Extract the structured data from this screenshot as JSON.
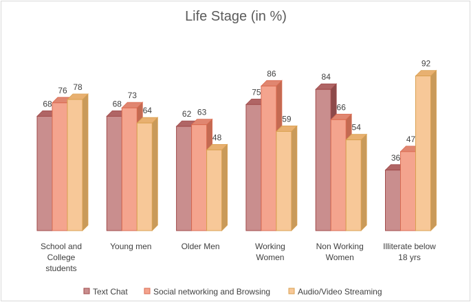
{
  "chart_data": {
    "type": "bar",
    "title": "Life Stage (in %)",
    "categories": [
      [
        "School and",
        "College",
        "students"
      ],
      [
        "Young men"
      ],
      [
        "Older Men"
      ],
      [
        "Working",
        "Women"
      ],
      [
        "Non Working",
        "Women"
      ],
      [
        "Illiterate below",
        "18 yrs"
      ]
    ],
    "series": [
      {
        "name": "Text Chat",
        "values": [
          68,
          68,
          62,
          75,
          84,
          36
        ],
        "color": "#c98e8e",
        "side": "#8c4a4a",
        "top": "#b06565",
        "edge": "#a04a4a"
      },
      {
        "name": "Social networking and Browsing",
        "values": [
          76,
          73,
          63,
          86,
          66,
          47
        ],
        "color": "#f4a48e",
        "side": "#c46a52",
        "top": "#e08670",
        "edge": "#d96a50"
      },
      {
        "name": "Audio/Video Streaming",
        "values": [
          78,
          64,
          48,
          59,
          54,
          92
        ],
        "color": "#f7c898",
        "side": "#c99a5a",
        "top": "#e8b070",
        "edge": "#d9a050"
      }
    ],
    "ylim": [
      0,
      100
    ],
    "grid": false,
    "legend": "bottom",
    "xlabel": "",
    "ylabel": ""
  }
}
